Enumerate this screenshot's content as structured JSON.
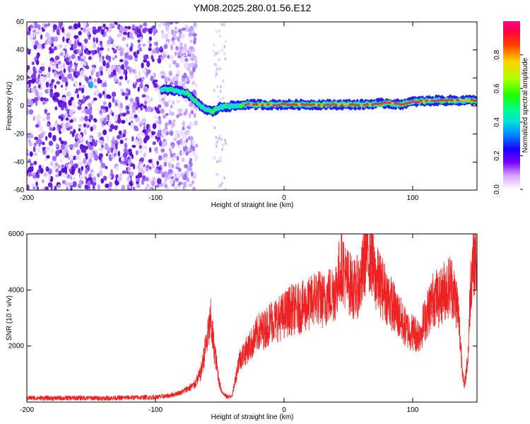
{
  "title": "YM08.2025.280.01.56.E12",
  "colors": {
    "snr_line": "#ee2222",
    "speckle": "#7a2ee6",
    "ridge_mid": "#00d2e6",
    "ridge_high": "#e83a2a"
  },
  "chart_data": [
    {
      "type": "heatmap",
      "title": "YM08.2025.280.01.56.E12",
      "xlabel": "Height of straight line (km)",
      "ylabel": "Frequency (Hz)",
      "xlim": [
        -200,
        150
      ],
      "ylim": [
        -60,
        60
      ],
      "x_ticks": [
        "-200",
        "-100",
        "0",
        "100"
      ],
      "y_ticks": [
        "60",
        "40",
        "20",
        "0",
        "-20",
        "-40",
        "-60"
      ],
      "grid": false,
      "colorbar": {
        "label": "Normalized spectral amplitude",
        "range": [
          0.0,
          1.0
        ],
        "ticks": [
          "0.0",
          "0.2",
          "0.4",
          "0.6",
          "0.8"
        ],
        "colormap": [
          "#ffffff",
          "#c060ff",
          "#6a00ff",
          "#0000ff",
          "#00aaff",
          "#00ffaa",
          "#00ff00",
          "#aaff00",
          "#ffcc00",
          "#ff4400",
          "#ff0044",
          "#ff0088"
        ]
      },
      "ridge": {
        "x": [
          -150,
          -100,
          -85,
          -75,
          -70,
          -65,
          -60,
          -55,
          -50,
          -40,
          -30,
          -20,
          0,
          20,
          40,
          60,
          80,
          90,
          100,
          120,
          150
        ],
        "frequency": [
          15,
          12,
          11,
          9,
          4,
          0,
          -3,
          -4,
          -1,
          0,
          1,
          1,
          1,
          1,
          1,
          1,
          2,
          1,
          3,
          4,
          4
        ]
      },
      "noise_region_x": [
        -200,
        -72
      ]
    },
    {
      "type": "line",
      "xlabel": "Height of straight line (km)",
      "ylabel": "SNR (10 * v/v)",
      "xlim": [
        -200,
        150
      ],
      "ylim": [
        0,
        6000
      ],
      "x_ticks": [
        "-200",
        "-100",
        "0",
        "100"
      ],
      "y_ticks": [
        "6000",
        "4000",
        "2000"
      ],
      "grid": false,
      "series": [
        {
          "x": [
            -200,
            -180,
            -160,
            -140,
            -120,
            -100,
            -90,
            -80,
            -70,
            -65,
            -60,
            -57,
            -55,
            -52,
            -50,
            -48,
            -45,
            -42,
            -40,
            -38,
            -35,
            -30,
            -25,
            -20,
            -15,
            -10,
            -5,
            0,
            5,
            10,
            15,
            20,
            25,
            30,
            35,
            40,
            43,
            45,
            48,
            50,
            55,
            60,
            63,
            65,
            68,
            70,
            75,
            80,
            85,
            90,
            95,
            100,
            105,
            110,
            115,
            118,
            120,
            125,
            130,
            135,
            138,
            140,
            143,
            145,
            147,
            150
          ],
          "values": [
            150,
            140,
            150,
            140,
            160,
            170,
            220,
            350,
            600,
            1000,
            2200,
            2900,
            2100,
            1200,
            600,
            350,
            200,
            180,
            300,
            800,
            1500,
            1800,
            2100,
            2500,
            2600,
            2900,
            2950,
            3100,
            3300,
            3300,
            3400,
            3500,
            3800,
            3600,
            3800,
            4000,
            4600,
            5000,
            4400,
            4300,
            4000,
            4300,
            5200,
            5500,
            5200,
            4500,
            4200,
            3800,
            3400,
            3000,
            2600,
            2500,
            2400,
            3000,
            3600,
            3800,
            3600,
            4000,
            4200,
            3400,
            1600,
            500,
            1600,
            4200,
            5300,
            5000
          ]
        }
      ]
    }
  ]
}
